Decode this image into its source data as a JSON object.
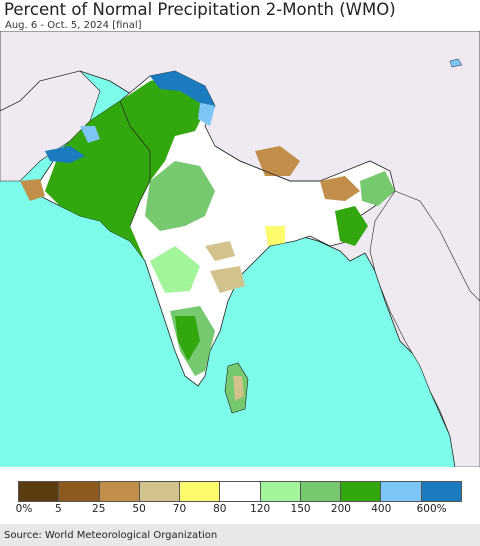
{
  "header": {
    "title": "Percent of Normal Precipitation 2-Month (WMO)",
    "subtitle": "Aug. 6 - Oct. 5, 2024 [final]"
  },
  "legend": {
    "labels": [
      "0%",
      "5",
      "25",
      "50",
      "70",
      "80",
      "120",
      "150",
      "200",
      "400",
      "600%"
    ],
    "colors": [
      "#5b3c11",
      "#8c5a1f",
      "#c18f4a",
      "#d2c28b",
      "#fbfb6b",
      "#ffffff",
      "#a3f59b",
      "#77c96f",
      "#33a70e",
      "#7cc6f8",
      "#1b7bbf"
    ]
  },
  "colors": {
    "ocean": "#7dfcea",
    "land_outside": "#efeaf1",
    "border": "#222222"
  },
  "footer": {
    "source": "Source: World Meteorological Organization"
  }
}
